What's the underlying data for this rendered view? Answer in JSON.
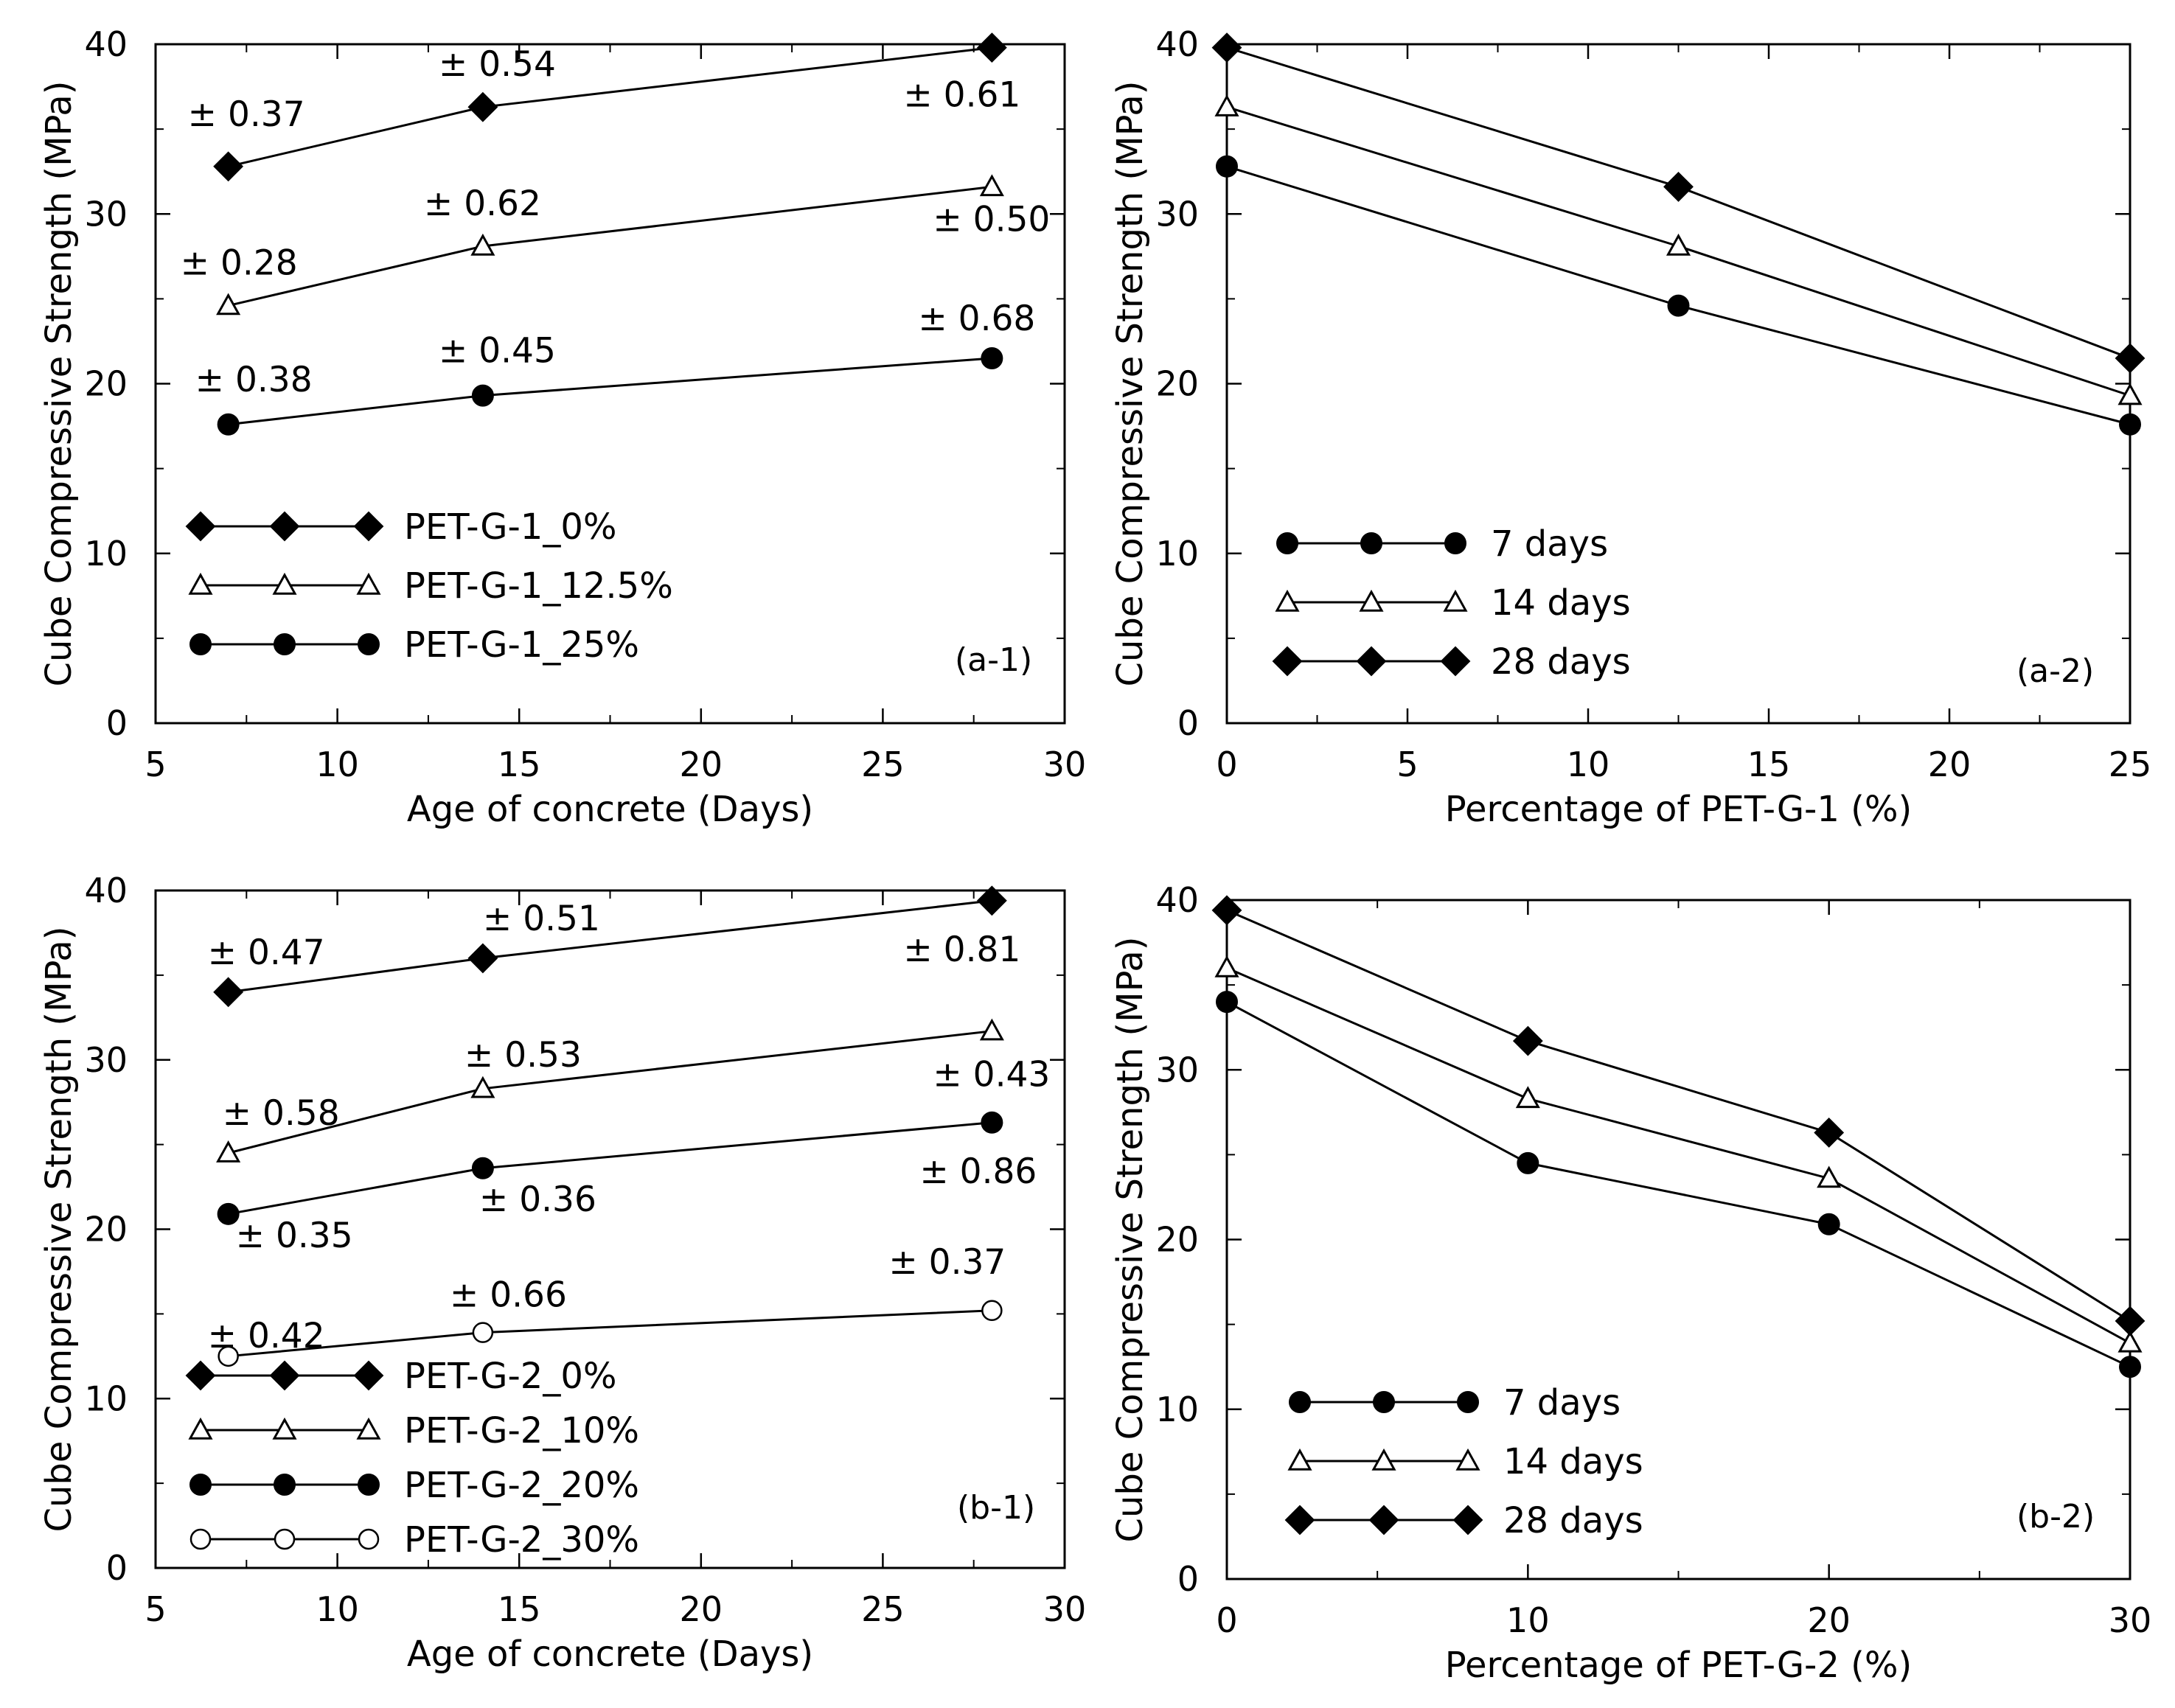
{
  "figure": {
    "panels": [
      "a-1",
      "a-2",
      "b-1",
      "b-2"
    ]
  },
  "chart_data": [
    {
      "id": "a-1",
      "type": "line",
      "panel_label": "(a-1)",
      "xlabel": "Age of concrete (Days)",
      "ylabel": "Cube Compressive Strength (MPa)",
      "xlim": [
        5,
        30
      ],
      "ylim": [
        0,
        40
      ],
      "xticks": [
        5,
        10,
        15,
        20,
        25,
        30
      ],
      "yticks": [
        0,
        10,
        20,
        30,
        40
      ],
      "xticks_minor": [
        7.5,
        12.5,
        17.5,
        22.5,
        27.5
      ],
      "yticks_minor": [
        5,
        15,
        25,
        35
      ],
      "grid": false,
      "legend_position": "bottom-left",
      "series": [
        {
          "name": "PET-G-1_0%",
          "marker": "diamond",
          "x": [
            7,
            14,
            28
          ],
          "y": [
            32.8,
            36.3,
            39.8
          ],
          "labels": [
            "± 0.37",
            "± 0.54",
            "± 0.61"
          ]
        },
        {
          "name": "PET-G-1_12.5%",
          "marker": "triangle-open",
          "x": [
            7,
            14,
            28
          ],
          "y": [
            24.6,
            28.1,
            31.6
          ],
          "labels": [
            "± 0.28",
            "± 0.62",
            "± 0.50"
          ]
        },
        {
          "name": "PET-G-1_25%",
          "marker": "circle",
          "x": [
            7,
            14,
            28
          ],
          "y": [
            17.6,
            19.3,
            21.5
          ],
          "labels": [
            "± 0.38",
            "± 0.45",
            "± 0.68"
          ]
        }
      ]
    },
    {
      "id": "a-2",
      "type": "line",
      "panel_label": "(a-2)",
      "xlabel": "Percentage of PET-G-1 (%)",
      "ylabel": "Cube Compressive Strength (MPa)",
      "xlim": [
        0,
        25
      ],
      "ylim": [
        0,
        40
      ],
      "xticks": [
        0,
        5,
        10,
        15,
        20,
        25
      ],
      "yticks": [
        0,
        10,
        20,
        30,
        40
      ],
      "xticks_minor": [
        2.5,
        7.5,
        12.5,
        17.5,
        22.5
      ],
      "yticks_minor": [
        5,
        15,
        25,
        35
      ],
      "grid": false,
      "legend_position": "bottom-left",
      "series": [
        {
          "name": "7 days",
          "marker": "circle",
          "x": [
            0,
            12.5,
            25
          ],
          "y": [
            32.8,
            24.6,
            17.6
          ]
        },
        {
          "name": "14 days",
          "marker": "triangle-open",
          "x": [
            0,
            12.5,
            25
          ],
          "y": [
            36.3,
            28.1,
            19.3
          ]
        },
        {
          "name": "28 days",
          "marker": "diamond",
          "x": [
            0,
            12.5,
            25
          ],
          "y": [
            39.8,
            31.6,
            21.5
          ]
        }
      ]
    },
    {
      "id": "b-1",
      "type": "line",
      "panel_label": "(b-1)",
      "xlabel": "Age of concrete (Days)",
      "ylabel": "Cube Compressive Strength (MPa)",
      "xlim": [
        5,
        30
      ],
      "ylim": [
        0,
        40
      ],
      "xticks": [
        5,
        10,
        15,
        20,
        25,
        30
      ],
      "yticks": [
        0,
        10,
        20,
        30,
        40
      ],
      "xticks_minor": [
        7.5,
        12.5,
        17.5,
        22.5,
        27.5
      ],
      "yticks_minor": [
        5,
        15,
        25,
        35
      ],
      "grid": false,
      "legend_position": "bottom-left",
      "series": [
        {
          "name": "PET-G-2_0%",
          "marker": "diamond",
          "x": [
            7,
            14,
            28
          ],
          "y": [
            34.0,
            36.0,
            39.4
          ],
          "labels": [
            "± 0.47",
            "± 0.51",
            "± 0.81"
          ]
        },
        {
          "name": "PET-G-2_10%",
          "marker": "triangle-open",
          "x": [
            7,
            14,
            28
          ],
          "y": [
            24.5,
            28.3,
            31.7
          ],
          "labels": [
            "± 0.58",
            "± 0.53",
            "± 0.43"
          ]
        },
        {
          "name": "PET-G-2_20%",
          "marker": "circle",
          "x": [
            7,
            14,
            28
          ],
          "y": [
            20.9,
            23.6,
            26.3
          ],
          "labels": [
            "± 0.35",
            "± 0.36",
            "± 0.86"
          ]
        },
        {
          "name": "PET-G-2_30%",
          "marker": "circle-open",
          "x": [
            7,
            14,
            28
          ],
          "y": [
            12.5,
            13.9,
            15.2
          ],
          "labels": [
            "± 0.42",
            "± 0.66",
            "± 0.37"
          ]
        }
      ]
    },
    {
      "id": "b-2",
      "type": "line",
      "panel_label": "(b-2)",
      "xlabel": "Percentage of PET-G-2 (%)",
      "ylabel": "Cube Compressive Strength (MPa)",
      "xlim": [
        0,
        30
      ],
      "ylim": [
        0,
        40
      ],
      "xticks": [
        0,
        10,
        20,
        30
      ],
      "yticks": [
        0,
        10,
        20,
        30,
        40
      ],
      "xticks_minor": [
        5,
        15,
        25
      ],
      "yticks_minor": [
        5,
        15,
        25,
        35
      ],
      "grid": false,
      "legend_position": "bottom-left",
      "series": [
        {
          "name": "7 days",
          "marker": "circle",
          "x": [
            0,
            10,
            20,
            30
          ],
          "y": [
            34.0,
            24.5,
            20.9,
            12.5
          ]
        },
        {
          "name": "14 days",
          "marker": "triangle-open",
          "x": [
            0,
            10,
            20,
            30
          ],
          "y": [
            36.0,
            28.3,
            23.6,
            13.9
          ]
        },
        {
          "name": "28 days",
          "marker": "diamond",
          "x": [
            0,
            10,
            20,
            30
          ],
          "y": [
            39.4,
            31.7,
            26.3,
            15.2
          ]
        }
      ]
    }
  ]
}
